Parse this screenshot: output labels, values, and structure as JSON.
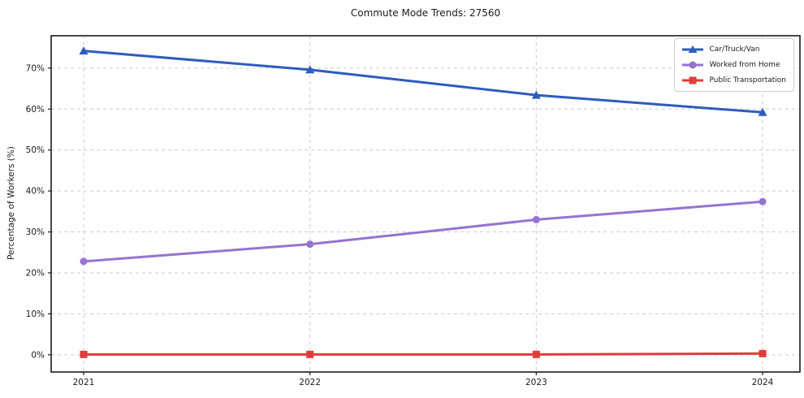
{
  "chart_data": {
    "type": "line",
    "title": "Commute Mode Trends: 27560",
    "xlabel": "",
    "ylabel": "Percentage of Workers (%)",
    "categories": [
      "2021",
      "2022",
      "2023",
      "2024"
    ],
    "series": [
      {
        "name": "Car/Truck/Van",
        "values": [
          74.2,
          69.6,
          63.4,
          59.2
        ],
        "color": "#2e5cbe",
        "marker": "triangle"
      },
      {
        "name": "Worked from Home",
        "values": [
          22.8,
          27.0,
          33.0,
          37.4
        ],
        "color": "#9673d2",
        "marker": "circle"
      },
      {
        "name": "Public Transportation",
        "values": [
          0.1,
          0.1,
          0.1,
          0.3
        ],
        "color": "#e23b3b",
        "marker": "square"
      }
    ],
    "yticks": [
      0,
      10,
      20,
      30,
      40,
      50,
      60,
      70
    ],
    "ytick_labels": [
      "0%",
      "10%",
      "20%",
      "30%",
      "40%",
      "50%",
      "60%",
      "70%"
    ],
    "ylim": [
      -4.2,
      77.9
    ],
    "grid": true,
    "grid_style": "dashed",
    "grid_color": "#cccccc",
    "axis_color": "#1a1a1a",
    "legend_position": "upper right"
  }
}
